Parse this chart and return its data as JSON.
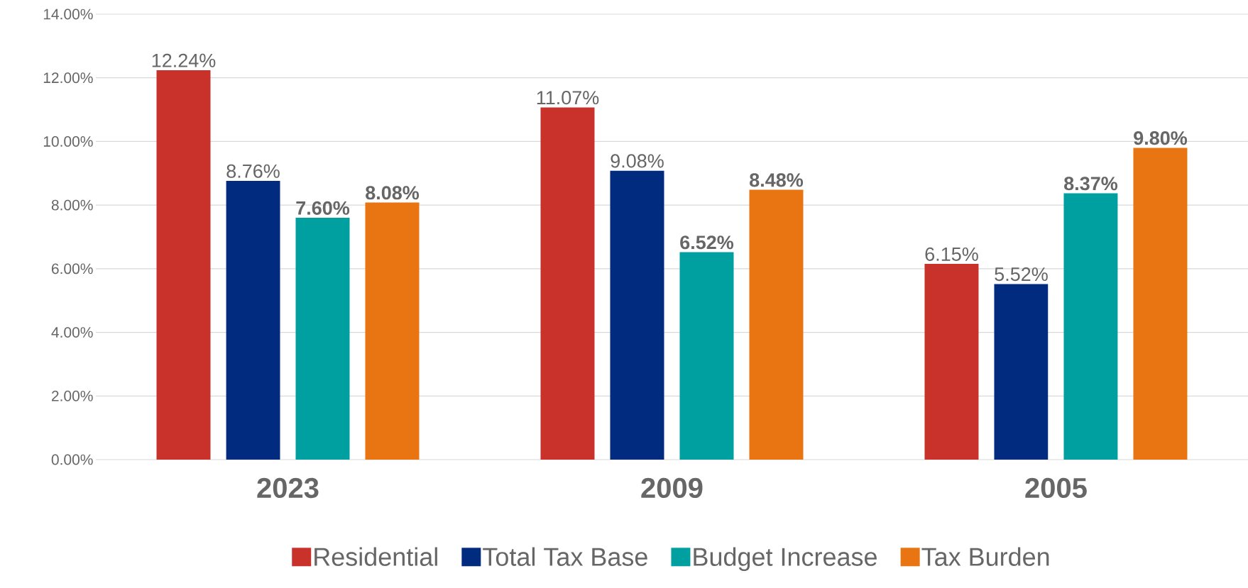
{
  "chart_data": {
    "type": "bar",
    "categories": [
      "2023",
      "2009",
      "2005"
    ],
    "series": [
      {
        "name": "Residential",
        "color": "#c9322b",
        "values": [
          12.24,
          11.07,
          6.15
        ],
        "value_labels": [
          "12.24%",
          "11.07%",
          "6.15%"
        ]
      },
      {
        "name": "Total Tax Base",
        "color": "#002b7f",
        "values": [
          8.76,
          9.08,
          5.52
        ],
        "value_labels": [
          "8.76%",
          "9.08%",
          "5.52%"
        ]
      },
      {
        "name": "Budget Increase",
        "color": "#00a0a0",
        "values": [
          7.6,
          6.52,
          8.37
        ],
        "value_labels": [
          "**7.60%**",
          "**6.52%**",
          "**8.37%**"
        ]
      },
      {
        "name": "Tax Burden",
        "color": "#e87511",
        "values": [
          8.08,
          8.48,
          9.8
        ],
        "value_labels": [
          "**8.08%**",
          "**8.48%**",
          "**9.80%**"
        ]
      }
    ],
    "ylim": [
      0,
      14
    ],
    "yticks": [
      {
        "value": 0,
        "label": "0.00%"
      },
      {
        "value": 2,
        "label": "2.00%"
      },
      {
        "value": 4,
        "label": "4.00%"
      },
      {
        "value": 6,
        "label": "6.00%"
      },
      {
        "value": 8,
        "label": "8.00%"
      },
      {
        "value": 10,
        "label": "10.00%"
      },
      {
        "value": 12,
        "label": "12.00%"
      },
      {
        "value": 14,
        "label": "14.00%"
      }
    ],
    "grid": "y",
    "legend": "bottom"
  }
}
